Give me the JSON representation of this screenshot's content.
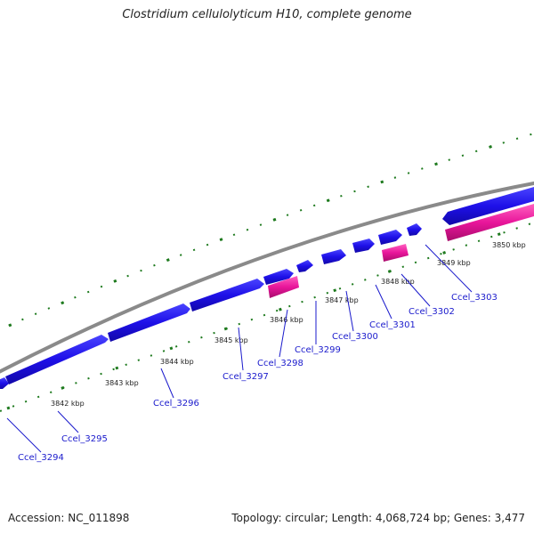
{
  "title": "Clostridium cellulolyticum H10, complete genome",
  "footer": {
    "accession": "Accession: NC_011898",
    "summary": "Topology: circular; Length: 4,068,724 bp; Genes: 3,477"
  },
  "colors": {
    "forward_gene": "#1e10e8",
    "rna_gene": "#e8159a",
    "backbone": "#8a8a8a",
    "ticks": "#1e7a1e",
    "label": "#1a1acc"
  },
  "tick_labels": [
    "3842 kbp",
    "3843 kbp",
    "3844 kbp",
    "3845 kbp",
    "3846 kbp",
    "3847 kbp",
    "3848 kbp",
    "3849 kbp",
    "3850 kbp"
  ],
  "genes": [
    "Ccel_3294",
    "Ccel_3295",
    "Ccel_3296",
    "Ccel_3297",
    "Ccel_3298",
    "Ccel_3299",
    "Ccel_3300",
    "Ccel_3301",
    "Ccel_3302",
    "Ccel_3303"
  ]
}
